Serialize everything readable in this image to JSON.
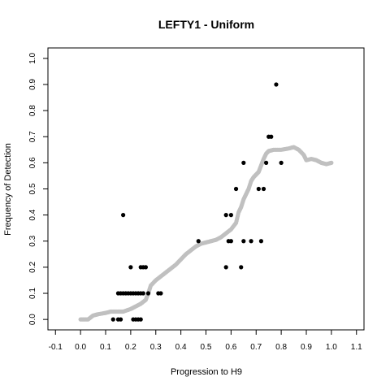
{
  "chart_data": {
    "type": "scatter",
    "title": "LEFTY1 - Uniform",
    "xlabel": "Progression to H9",
    "ylabel": "Frequency of Detection",
    "xlim": [
      -0.13,
      1.13
    ],
    "ylim": [
      -0.04,
      1.04
    ],
    "x_ticks": [
      "-0.1",
      "0.0",
      "0.1",
      "0.2",
      "0.3",
      "0.4",
      "0.5",
      "0.6",
      "0.7",
      "0.8",
      "0.9",
      "1.0",
      "1.1"
    ],
    "y_ticks": [
      "0.0",
      "0.1",
      "0.2",
      "0.3",
      "0.4",
      "0.5",
      "0.6",
      "0.7",
      "0.8",
      "0.9",
      "1.0"
    ],
    "grid": false,
    "series": [
      {
        "style": "points",
        "color": "#000000",
        "points": [
          [
            0.13,
            0.0
          ],
          [
            0.15,
            0.0
          ],
          [
            0.16,
            0.0
          ],
          [
            0.21,
            0.0
          ],
          [
            0.22,
            0.0
          ],
          [
            0.23,
            0.0
          ],
          [
            0.24,
            0.0
          ],
          [
            0.15,
            0.1
          ],
          [
            0.16,
            0.1
          ],
          [
            0.17,
            0.1
          ],
          [
            0.18,
            0.1
          ],
          [
            0.19,
            0.1
          ],
          [
            0.2,
            0.1
          ],
          [
            0.21,
            0.1
          ],
          [
            0.22,
            0.1
          ],
          [
            0.23,
            0.1
          ],
          [
            0.24,
            0.1
          ],
          [
            0.25,
            0.1
          ],
          [
            0.27,
            0.1
          ],
          [
            0.31,
            0.1
          ],
          [
            0.32,
            0.1
          ],
          [
            0.2,
            0.2
          ],
          [
            0.24,
            0.2
          ],
          [
            0.25,
            0.2
          ],
          [
            0.26,
            0.2
          ],
          [
            0.58,
            0.2
          ],
          [
            0.64,
            0.2
          ],
          [
            0.47,
            0.3
          ],
          [
            0.59,
            0.3
          ],
          [
            0.6,
            0.3
          ],
          [
            0.65,
            0.3
          ],
          [
            0.68,
            0.3
          ],
          [
            0.72,
            0.3
          ],
          [
            0.17,
            0.4
          ],
          [
            0.58,
            0.4
          ],
          [
            0.6,
            0.4
          ],
          [
            0.62,
            0.5
          ],
          [
            0.71,
            0.5
          ],
          [
            0.73,
            0.5
          ],
          [
            0.65,
            0.6
          ],
          [
            0.74,
            0.6
          ],
          [
            0.8,
            0.6
          ],
          [
            0.75,
            0.7
          ],
          [
            0.76,
            0.7
          ],
          [
            0.78,
            0.9
          ]
        ]
      },
      {
        "style": "smoothed",
        "color": "#c0c0c0",
        "points": [
          [
            0.0,
            0.0
          ],
          [
            0.03,
            0.0
          ],
          [
            0.05,
            0.015
          ],
          [
            0.07,
            0.02
          ],
          [
            0.1,
            0.025
          ],
          [
            0.12,
            0.03
          ],
          [
            0.15,
            0.03
          ],
          [
            0.17,
            0.03
          ],
          [
            0.2,
            0.04
          ],
          [
            0.22,
            0.05
          ],
          [
            0.24,
            0.06
          ],
          [
            0.26,
            0.075
          ],
          [
            0.27,
            0.1
          ],
          [
            0.28,
            0.13
          ],
          [
            0.3,
            0.15
          ],
          [
            0.32,
            0.165
          ],
          [
            0.34,
            0.18
          ],
          [
            0.36,
            0.195
          ],
          [
            0.38,
            0.21
          ],
          [
            0.4,
            0.23
          ],
          [
            0.42,
            0.25
          ],
          [
            0.44,
            0.265
          ],
          [
            0.46,
            0.28
          ],
          [
            0.48,
            0.29
          ],
          [
            0.5,
            0.295
          ],
          [
            0.52,
            0.3
          ],
          [
            0.54,
            0.305
          ],
          [
            0.56,
            0.315
          ],
          [
            0.58,
            0.33
          ],
          [
            0.6,
            0.345
          ],
          [
            0.62,
            0.37
          ],
          [
            0.63,
            0.41
          ],
          [
            0.64,
            0.43
          ],
          [
            0.65,
            0.46
          ],
          [
            0.66,
            0.48
          ],
          [
            0.67,
            0.5
          ],
          [
            0.68,
            0.53
          ],
          [
            0.69,
            0.545
          ],
          [
            0.7,
            0.555
          ],
          [
            0.71,
            0.565
          ],
          [
            0.72,
            0.59
          ],
          [
            0.73,
            0.615
          ],
          [
            0.74,
            0.635
          ],
          [
            0.75,
            0.645
          ],
          [
            0.77,
            0.65
          ],
          [
            0.8,
            0.65
          ],
          [
            0.83,
            0.655
          ],
          [
            0.85,
            0.66
          ],
          [
            0.87,
            0.65
          ],
          [
            0.89,
            0.63
          ],
          [
            0.9,
            0.61
          ],
          [
            0.92,
            0.615
          ],
          [
            0.94,
            0.61
          ],
          [
            0.96,
            0.6
          ],
          [
            0.98,
            0.595
          ],
          [
            1.0,
            0.6
          ]
        ]
      }
    ]
  }
}
